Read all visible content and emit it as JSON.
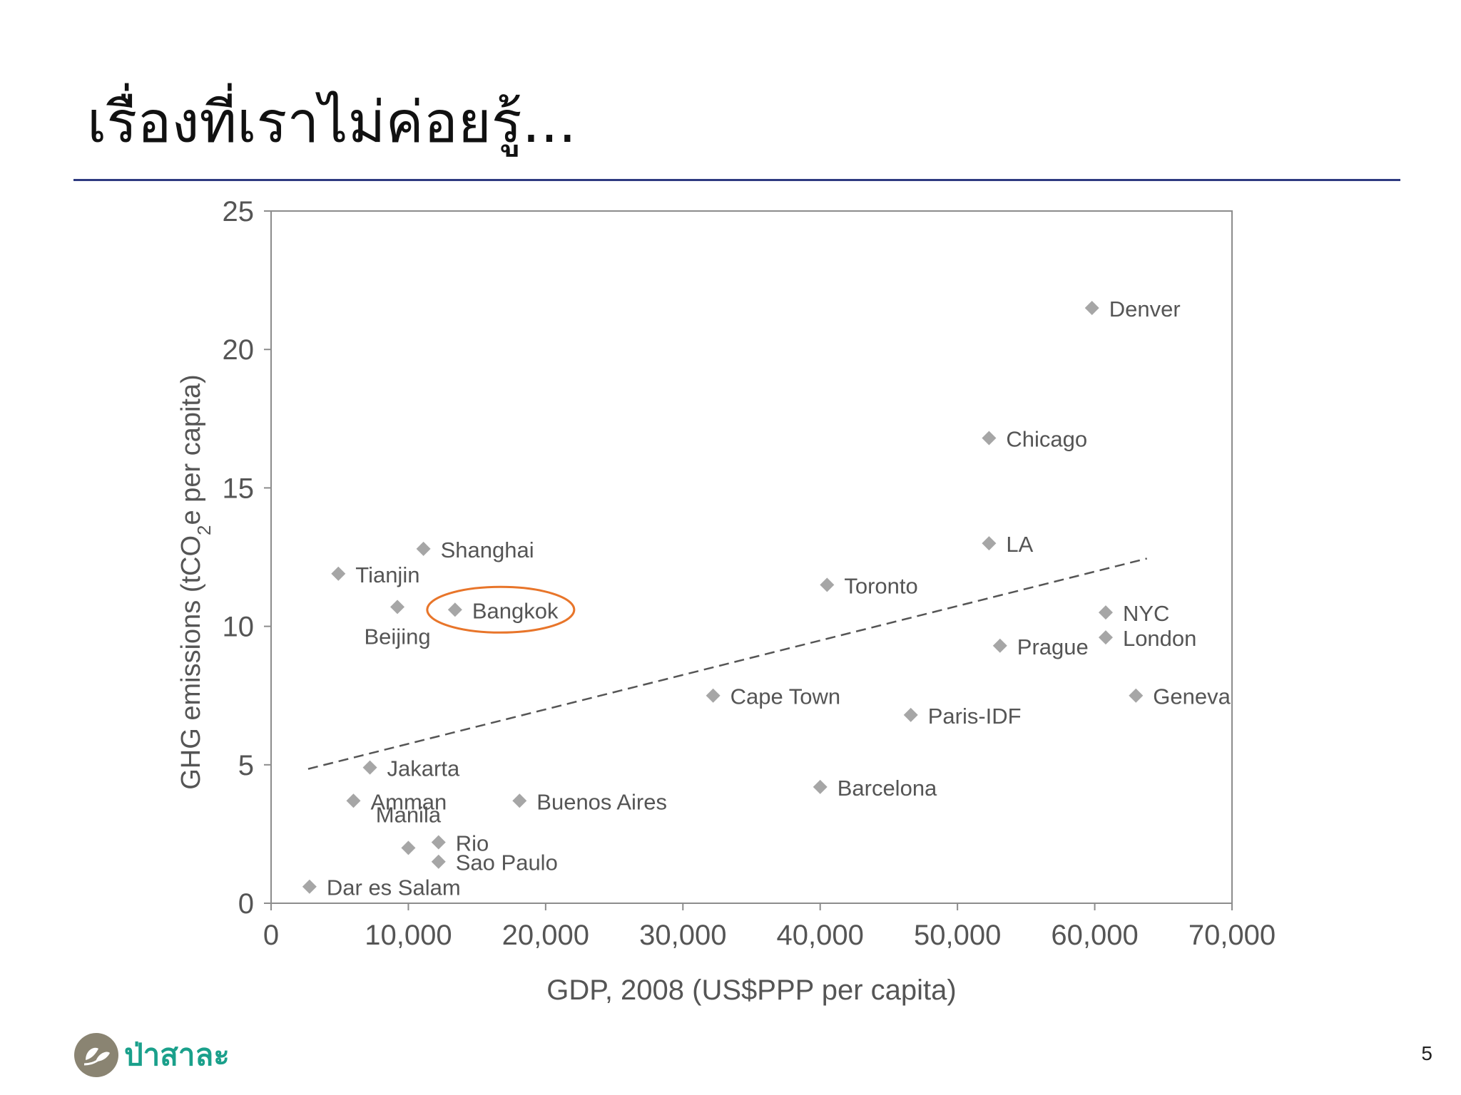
{
  "slide": {
    "title": "เรื่องที่เราไม่ค่อยรู้...",
    "page_number": "5",
    "rule_color": "#2e3a80"
  },
  "logo": {
    "text": "ป่าสาละ",
    "icon": "leaf-logo-icon",
    "text_color": "#1aa08b"
  },
  "chart_data": {
    "type": "scatter",
    "xlabel": "GDP, 2008 (US$PPP per capita)",
    "ylabel_parts": [
      "GHG emissions (tCO",
      "2",
      "e per capita)"
    ],
    "xlim": [
      0,
      70000
    ],
    "ylim": [
      0,
      25
    ],
    "x_ticks": [
      0,
      10000,
      20000,
      30000,
      40000,
      50000,
      60000,
      70000
    ],
    "x_tick_labels": [
      "0",
      "10,000",
      "20,000",
      "30,000",
      "40,000",
      "50,000",
      "60,000",
      "70,000"
    ],
    "y_ticks": [
      0,
      5,
      10,
      15,
      20,
      25
    ],
    "y_tick_labels": [
      "0",
      "5",
      "10",
      "15",
      "20",
      "25"
    ],
    "grid": false,
    "marker": "diamond",
    "marker_color": "#a6a6a6",
    "highlight_color": "#e8752a",
    "highlighted": "Bangkok",
    "trendline": {
      "style": "dashed",
      "x": [
        2700,
        63800
      ],
      "y": [
        4.85,
        12.45
      ]
    },
    "points": [
      {
        "label": "Denver",
        "x": 59800,
        "y": 21.5,
        "label_pos": "right"
      },
      {
        "label": "Chicago",
        "x": 52300,
        "y": 16.8,
        "label_pos": "right"
      },
      {
        "label": "LA",
        "x": 52300,
        "y": 13.0,
        "label_pos": "right"
      },
      {
        "label": "Toronto",
        "x": 40500,
        "y": 11.5,
        "label_pos": "right"
      },
      {
        "label": "NYC",
        "x": 60800,
        "y": 10.5,
        "label_pos": "right"
      },
      {
        "label": "London",
        "x": 60800,
        "y": 9.6,
        "label_pos": "right"
      },
      {
        "label": "Prague",
        "x": 53100,
        "y": 9.3,
        "label_pos": "right"
      },
      {
        "label": "Geneva",
        "x": 63000,
        "y": 7.5,
        "label_pos": "right"
      },
      {
        "label": "Cape Town",
        "x": 32200,
        "y": 7.5,
        "label_pos": "right"
      },
      {
        "label": "Paris-IDF",
        "x": 46600,
        "y": 6.8,
        "label_pos": "right"
      },
      {
        "label": "Barcelona",
        "x": 40000,
        "y": 4.2,
        "label_pos": "right"
      },
      {
        "label": "Shanghai",
        "x": 11100,
        "y": 12.8,
        "label_pos": "right"
      },
      {
        "label": "Tianjin",
        "x": 4900,
        "y": 11.9,
        "label_pos": "right"
      },
      {
        "label": "Beijing",
        "x": 9200,
        "y": 10.7,
        "label_pos": "below"
      },
      {
        "label": "Bangkok",
        "x": 13400,
        "y": 10.6,
        "label_pos": "right"
      },
      {
        "label": "Jakarta",
        "x": 7200,
        "y": 4.9,
        "label_pos": "right"
      },
      {
        "label": "Amman",
        "x": 6000,
        "y": 3.7,
        "label_pos": "right"
      },
      {
        "label": "Manila",
        "x": 10000,
        "y": 2.0,
        "label_pos": "above"
      },
      {
        "label": "Buenos Aires",
        "x": 18100,
        "y": 3.7,
        "label_pos": "right"
      },
      {
        "label": "Rio",
        "x": 12200,
        "y": 2.2,
        "label_pos": "right"
      },
      {
        "label": "Sao Paulo",
        "x": 12200,
        "y": 1.5,
        "label_pos": "right"
      },
      {
        "label": "Dar es Salam",
        "x": 2800,
        "y": 0.6,
        "label_pos": "right"
      }
    ]
  }
}
